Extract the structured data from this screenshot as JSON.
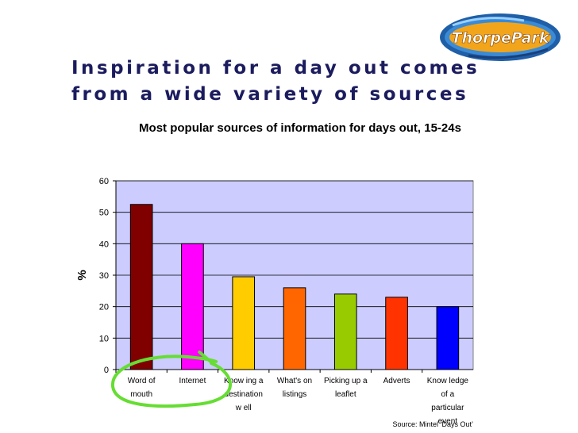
{
  "slide": {
    "title": "Inspiration for a day out comes from a wide variety of sources",
    "logo_text": "ThorpePark",
    "source": "Source: Mintel ‘Days Out’"
  },
  "chart_data": {
    "type": "bar",
    "title": "Most popular sources of information for days out, 15-24s",
    "xlabel": "",
    "ylabel": "%",
    "ylim": [
      0,
      60
    ],
    "yticks": [
      0,
      10,
      20,
      30,
      40,
      50,
      60
    ],
    "grid": true,
    "plot_background": "#ccccff",
    "categories": [
      [
        "Word of",
        "mouth"
      ],
      [
        "Internet"
      ],
      [
        "Know ing a",
        "destination",
        "w ell"
      ],
      [
        "What's on",
        "listings"
      ],
      [
        "Picking up a",
        "leaflet"
      ],
      [
        "Adverts"
      ],
      [
        "Know ledge",
        "of a",
        "particular",
        "event"
      ]
    ],
    "values": [
      52.5,
      40,
      29.5,
      26,
      24,
      23,
      20
    ],
    "colors": [
      "#800000",
      "#ff00ff",
      "#ffcc00",
      "#ff6600",
      "#99cc00",
      "#ff3300",
      "#0000ff"
    ],
    "annotation": {
      "circled_category": "Word of mouth",
      "color": "#66dd33"
    }
  }
}
